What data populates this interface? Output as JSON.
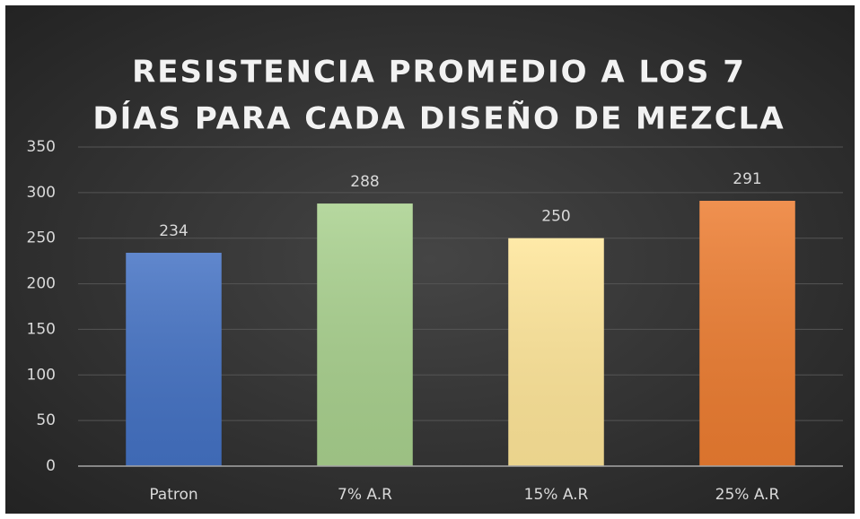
{
  "chart_data": {
    "type": "bar",
    "title": [
      "RESISTENCIA PROMEDIO A LOS 7",
      "DÍAS PARA CADA DISEÑO DE MEZCLA"
    ],
    "categories": [
      "Patron",
      "7% A.R",
      "15% A.R",
      "25% A.R"
    ],
    "values": [
      234,
      288,
      250,
      291
    ],
    "colors": [
      "#4472c4",
      "#a9d18e",
      "#ffe699",
      "#ed7d31"
    ],
    "ylim": [
      0,
      350
    ],
    "yticks": [
      0,
      50,
      100,
      150,
      200,
      250,
      300,
      350
    ],
    "grid": true
  }
}
